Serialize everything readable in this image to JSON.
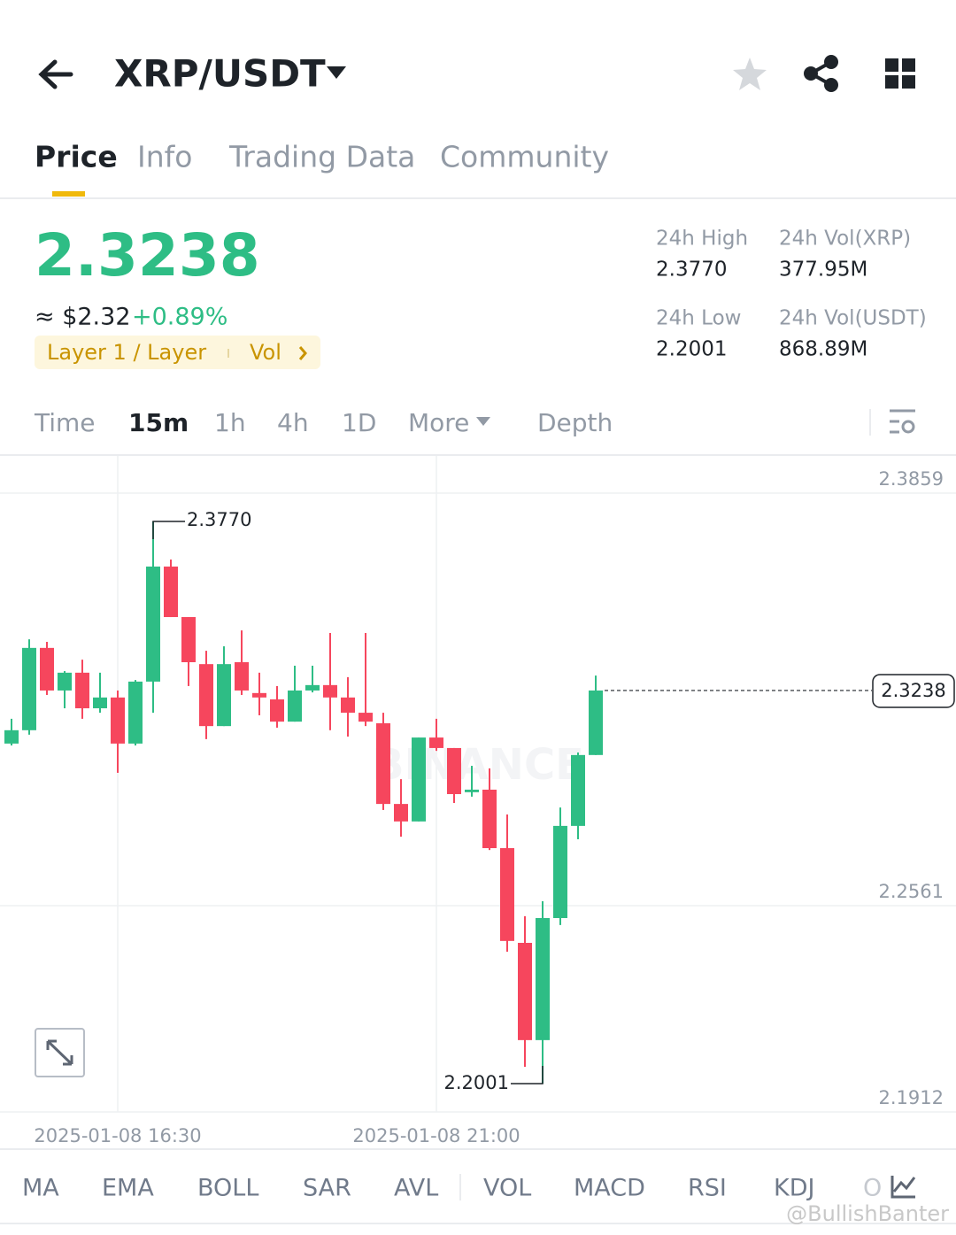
{
  "header": {
    "pair": "XRP/USDT"
  },
  "tabs": [
    "Price",
    "Info",
    "Trading Data",
    "Community"
  ],
  "price": {
    "last": "2.3238",
    "approx": "≈ $2.32",
    "change": "+0.89%",
    "tag": "Layer 1 / Layer",
    "tag_vol": "Vol"
  },
  "stats": [
    {
      "label": "24h High",
      "value": "2.3770"
    },
    {
      "label": "24h Vol(XRP)",
      "value": "377.95M"
    },
    {
      "label": "24h Low",
      "value": "2.2001"
    },
    {
      "label": "24h Vol(USDT)",
      "value": "868.89M"
    }
  ],
  "intervals": [
    "Time",
    "15m",
    "1h",
    "4h",
    "1D",
    "More",
    "Depth"
  ],
  "indicators": [
    "MA",
    "EMA",
    "BOLL",
    "SAR",
    "AVL",
    "VOL",
    "MACD",
    "RSI",
    "KDJ",
    "O"
  ],
  "watermark": "@BullishBanter",
  "chart_data": {
    "type": "candlestick",
    "watermark": "BINANCE",
    "categories": [
      null,
      null,
      null,
      null,
      null,
      null,
      "2025-01-08 16:30",
      null,
      null,
      null,
      null,
      null,
      null,
      null,
      null,
      null,
      null,
      null,
      null,
      null,
      null,
      null,
      null,
      null,
      "2025-01-08 21:00",
      null,
      null,
      null,
      null,
      null,
      null,
      null,
      null,
      null
    ],
    "open": [
      2.3071,
      2.3113,
      2.3372,
      2.3238,
      2.3294,
      2.3182,
      2.3216,
      2.3071,
      2.3266,
      2.3628,
      2.3469,
      2.3321,
      2.3126,
      2.3327,
      2.323,
      2.321,
      2.314,
      2.3238,
      2.3255,
      2.3216,
      2.3168,
      2.3135,
      2.2881,
      2.2826,
      2.309,
      2.3057,
      2.2918,
      2.2926,
      2.2742,
      2.2444,
      2.2138,
      2.2522,
      2.2812,
      2.3035
    ],
    "high": [
      2.3149,
      2.3399,
      2.3391,
      2.3299,
      2.3335,
      2.3294,
      2.3238,
      2.3271,
      2.377,
      2.365,
      2.3469,
      2.3363,
      2.3377,
      2.3427,
      2.3294,
      2.3252,
      2.3316,
      2.3316,
      2.3419,
      2.328,
      2.3419,
      2.3168,
      2.2959,
      2.309,
      2.3149,
      2.3057,
      2.3001,
      2.2993,
      2.2848,
      2.2528,
      2.2575,
      2.287,
      2.3043,
      2.3285
    ],
    "low": [
      2.3065,
      2.3099,
      2.3224,
      2.3182,
      2.3149,
      2.3168,
      2.2979,
      2.3065,
      2.3168,
      2.3469,
      2.3252,
      2.3085,
      2.3126,
      2.3224,
      2.316,
      2.3121,
      2.314,
      2.3232,
      2.3113,
      2.3093,
      2.3126,
      2.2862,
      2.2778,
      2.2826,
      2.3048,
      2.2884,
      2.2904,
      2.2736,
      2.2416,
      2.2054,
      2.2001,
      2.25,
      2.277,
      2.3035
    ],
    "close": [
      2.3113,
      2.3372,
      2.3238,
      2.3294,
      2.3182,
      2.3216,
      2.3071,
      2.3266,
      2.3628,
      2.3469,
      2.3327,
      2.3126,
      2.3321,
      2.3238,
      2.3216,
      2.314,
      2.3238,
      2.3255,
      2.3216,
      2.3168,
      2.314,
      2.2881,
      2.2826,
      2.309,
      2.3057,
      2.2912,
      2.2926,
      2.2742,
      2.245,
      2.2138,
      2.2522,
      2.2812,
      2.3035,
      2.3238
    ],
    "up_color": "#2ebd85",
    "down_color": "#f6465d",
    "ylim": [
      2.1912,
      2.3976
    ],
    "yticks": [
      2.3859,
      2.2561,
      2.1912
    ],
    "grid": true,
    "high_label": "2.3770",
    "low_label": "2.2001",
    "last_label": "2.3238"
  }
}
